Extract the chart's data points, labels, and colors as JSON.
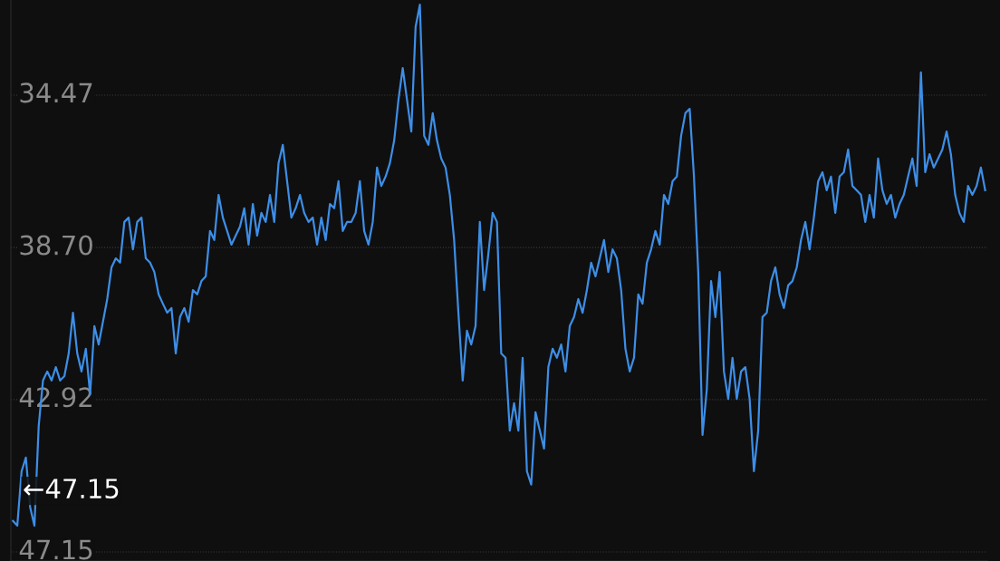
{
  "chart_data": {
    "type": "line",
    "categories": [
      null,
      null,
      null,
      null,
      null,
      null,
      null,
      null,
      null,
      null,
      null,
      null,
      null,
      null,
      null,
      null,
      null,
      null,
      null,
      null,
      null,
      null,
      null,
      null,
      null,
      null,
      null,
      null,
      null,
      null,
      null,
      null,
      null,
      null,
      null,
      null,
      null,
      null,
      null,
      null,
      null,
      null,
      null,
      null,
      null,
      null,
      null,
      null,
      null,
      null,
      null,
      null,
      null,
      null,
      null,
      null,
      null,
      null,
      null,
      null,
      null,
      null,
      null,
      null,
      null,
      null,
      null,
      null,
      null,
      null,
      null,
      null,
      null,
      null,
      null,
      null,
      null,
      null,
      null,
      null,
      null,
      null,
      null,
      null,
      null,
      null,
      null,
      null,
      null,
      null,
      null,
      null,
      null,
      null,
      null,
      null,
      null,
      null,
      null,
      null,
      null,
      null,
      null,
      null,
      null,
      null,
      null,
      null,
      null,
      null,
      null,
      null,
      null,
      null,
      null,
      null,
      null,
      null,
      null,
      null,
      null,
      null,
      null,
      null,
      null,
      null,
      null,
      null,
      null,
      null,
      null,
      null,
      null,
      null,
      null,
      null,
      null,
      null,
      null,
      null,
      null,
      null,
      null,
      null,
      null,
      null,
      null,
      null,
      null,
      null,
      null,
      null,
      null,
      null,
      null,
      null,
      null,
      null,
      null,
      null,
      null,
      null,
      null,
      null,
      null,
      null,
      null,
      null,
      null,
      null,
      null,
      null,
      null,
      null,
      null,
      null,
      null,
      null,
      null,
      null,
      null,
      null,
      null,
      null,
      null,
      null,
      null,
      null,
      null,
      null,
      null,
      null,
      null,
      null,
      null,
      null,
      null,
      null,
      null,
      null,
      null,
      null,
      null,
      null,
      null,
      null,
      null,
      null,
      null,
      null,
      null,
      null,
      null,
      null,
      null,
      null,
      null,
      null,
      null,
      null,
      null,
      null,
      null,
      null,
      null,
      null,
      null,
      null
    ],
    "series": [
      {
        "color": "#3d8ee6",
        "values": [
          46.29,
          46.42,
          44.91,
          44.53,
          45.91,
          46.42,
          43.65,
          42.39,
          42.14,
          42.39,
          42.02,
          42.39,
          42.27,
          41.64,
          40.51,
          41.64,
          42.14,
          41.51,
          42.77,
          40.88,
          41.39,
          40.76,
          40.13,
          39.25,
          39.0,
          39.12,
          37.99,
          37.87,
          38.75,
          37.99,
          37.87,
          39.0,
          39.12,
          39.38,
          40.0,
          40.26,
          40.51,
          40.38,
          41.64,
          40.63,
          40.38,
          40.76,
          39.88,
          40.0,
          39.63,
          39.5,
          38.24,
          38.49,
          37.24,
          37.87,
          38.24,
          38.62,
          38.37,
          38.12,
          37.61,
          38.62,
          37.49,
          38.37,
          37.74,
          37.99,
          37.24,
          37.99,
          36.36,
          35.85,
          36.86,
          37.87,
          37.61,
          37.24,
          37.74,
          37.99,
          37.87,
          38.62,
          37.87,
          38.49,
          37.49,
          37.61,
          36.86,
          38.24,
          37.99,
          37.99,
          37.74,
          36.86,
          38.24,
          38.62,
          37.99,
          36.48,
          36.99,
          36.73,
          36.36,
          35.73,
          34.6,
          33.72,
          34.6,
          35.48,
          32.58,
          31.96,
          35.6,
          35.85,
          34.97,
          35.73,
          36.23,
          36.48,
          37.24,
          38.49,
          40.51,
          42.39,
          41.01,
          41.39,
          40.88,
          37.99,
          39.88,
          38.87,
          37.74,
          37.99,
          41.64,
          41.76,
          43.78,
          43.02,
          43.78,
          41.76,
          44.91,
          45.28,
          43.27,
          43.78,
          44.28,
          42.02,
          41.51,
          41.76,
          41.39,
          42.14,
          40.88,
          40.63,
          40.13,
          40.51,
          39.88,
          39.12,
          39.5,
          39.0,
          38.49,
          39.38,
          38.75,
          39.0,
          39.88,
          41.51,
          42.14,
          41.76,
          40.0,
          40.26,
          39.12,
          38.75,
          38.24,
          38.62,
          37.24,
          37.49,
          36.86,
          36.73,
          35.6,
          34.97,
          34.85,
          36.73,
          39.38,
          43.9,
          42.64,
          39.63,
          40.63,
          39.38,
          42.14,
          42.9,
          41.76,
          42.9,
          42.14,
          42.02,
          42.9,
          44.91,
          43.78,
          40.63,
          40.51,
          39.63,
          39.25,
          40.0,
          40.38,
          39.75,
          39.63,
          39.25,
          38.49,
          37.99,
          38.75,
          37.87,
          36.86,
          36.61,
          37.11,
          36.73,
          37.74,
          36.73,
          36.61,
          35.98,
          36.99,
          37.11,
          37.24,
          37.99,
          37.24,
          37.87,
          36.23,
          37.11,
          37.49,
          37.24,
          37.87,
          37.49,
          37.24,
          36.73,
          36.23,
          36.99,
          33.84,
          36.61,
          36.11,
          36.48,
          36.23,
          35.98,
          35.48,
          36.11,
          37.24,
          37.74,
          37.99,
          36.99,
          37.24,
          36.99,
          36.48,
          37.11
        ]
      }
    ],
    "ylim": [
      47.4,
      31.83
    ],
    "yticks": [
      34.47,
      {
        "value": 38.7,
        "label": "38.70"
      },
      42.92,
      47.15
    ],
    "grid": "y",
    "legend": false,
    "marker": "none",
    "line_style": "solid",
    "tick_labels": "y",
    "annotations": [
      "←47.15"
    ]
  }
}
